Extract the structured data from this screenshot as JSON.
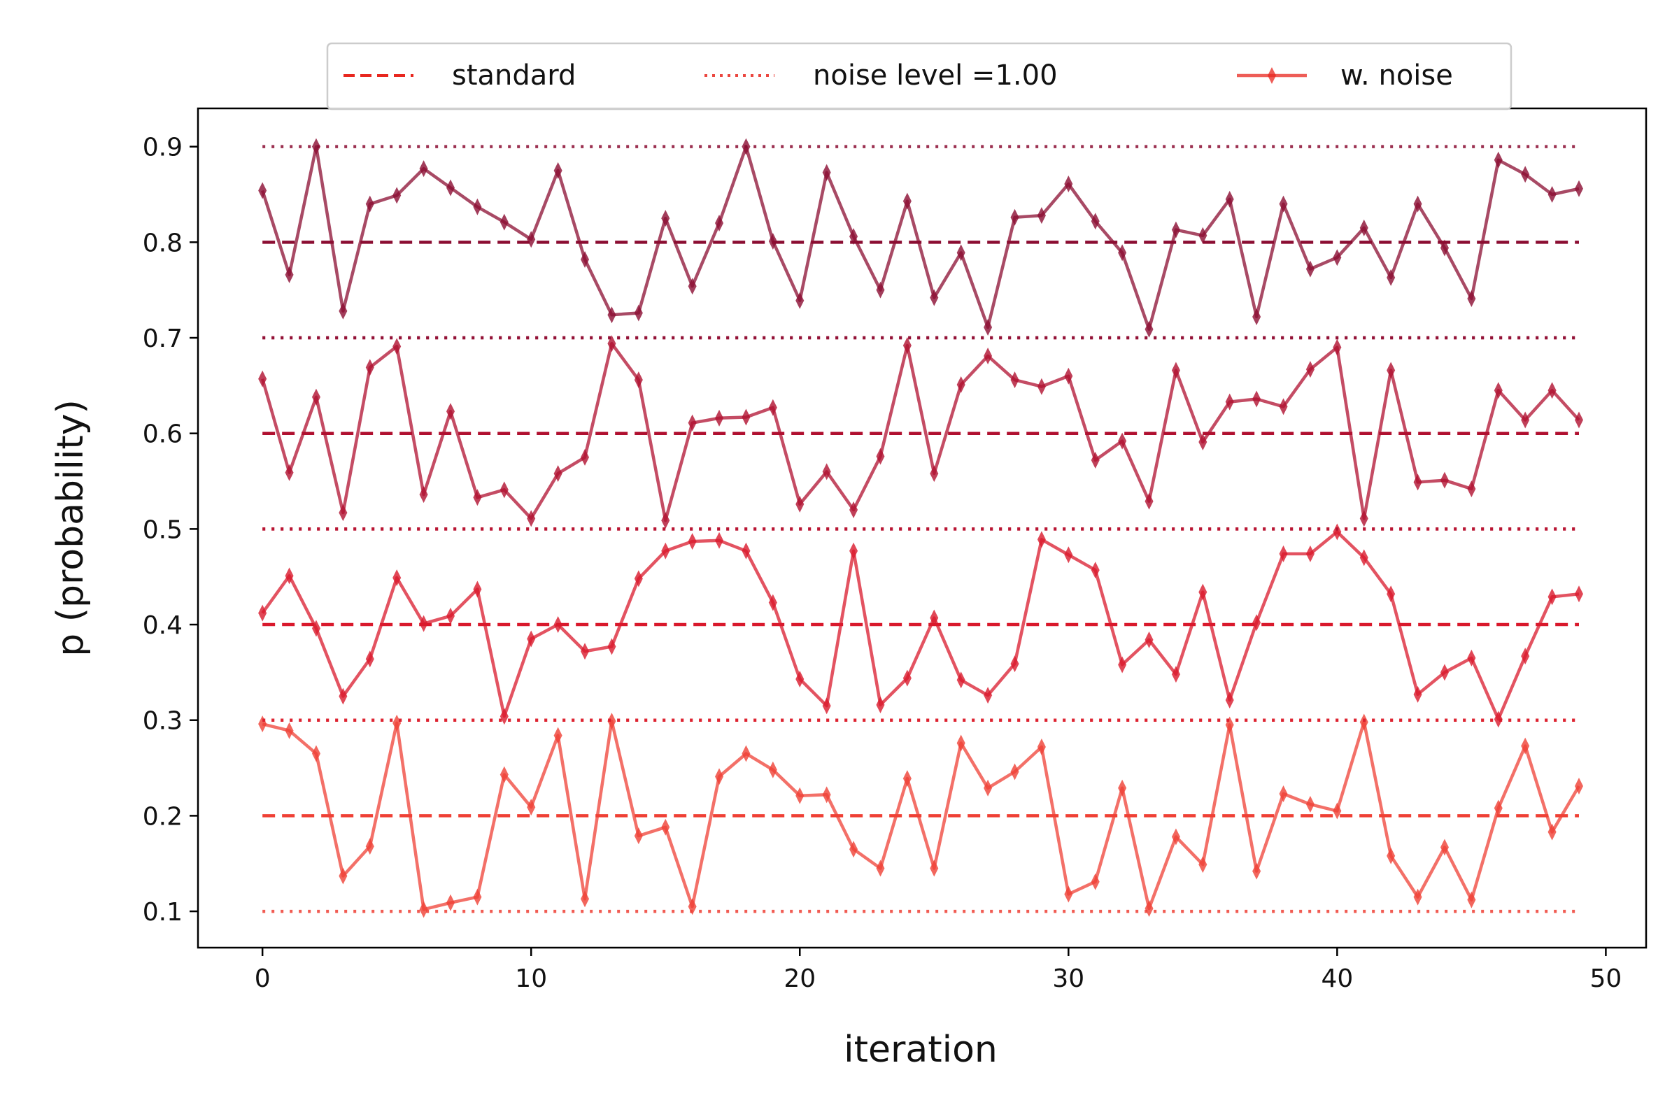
{
  "chart_data": {
    "type": "line",
    "xlabel": "iteration",
    "ylabel": "p (probability)",
    "xlim": [
      -2.4,
      51.5
    ],
    "ylim": [
      0.062,
      0.94
    ],
    "xticks": [
      0,
      10,
      20,
      30,
      40,
      50
    ],
    "xtick_labels": [
      "0",
      "10",
      "20",
      "30",
      "40",
      "50"
    ],
    "yticks": [
      0.1,
      0.2,
      0.3,
      0.4,
      0.5,
      0.6,
      0.7,
      0.8,
      0.9
    ],
    "ytick_labels": [
      "0.1",
      "0.2",
      "0.3",
      "0.4",
      "0.5",
      "0.6",
      "0.7",
      "0.8",
      "0.9"
    ],
    "grid": false,
    "legend": {
      "placement": "top-center",
      "entries": [
        {
          "label": "standard",
          "style": "dashed",
          "color": "#e8271f"
        },
        {
          "label": "noise level =1.00",
          "style": "dotted",
          "color": "#e8271f"
        },
        {
          "label": "w. noise",
          "style": "marker-line",
          "color": "#e8271f"
        }
      ]
    },
    "x_range": [
      0,
      49
    ],
    "series": [
      {
        "color": "#ef4035",
        "standard": 0.2,
        "noise_bounds": [
          0.1,
          0.3
        ],
        "values": [
          0.296,
          0.289,
          0.265,
          0.137,
          0.168,
          0.297,
          0.102,
          0.109,
          0.115,
          0.243,
          0.209,
          0.284,
          0.113,
          0.299,
          0.179,
          0.188,
          0.105,
          0.241,
          0.265,
          0.248,
          0.221,
          0.222,
          0.165,
          0.145,
          0.239,
          0.145,
          0.276,
          0.229,
          0.246,
          0.272,
          0.118,
          0.131,
          0.229,
          0.103,
          0.178,
          0.149,
          0.295,
          0.142,
          0.223,
          0.212,
          0.205,
          0.298,
          0.158,
          0.115,
          0.167,
          0.112,
          0.208,
          0.273,
          0.183,
          0.231
        ]
      },
      {
        "color": "#d9192c",
        "standard": 0.4,
        "noise_bounds": [
          0.3,
          0.5
        ],
        "values": [
          0.412,
          0.451,
          0.396,
          0.325,
          0.364,
          0.449,
          0.401,
          0.409,
          0.437,
          0.304,
          0.385,
          0.4,
          0.372,
          0.377,
          0.448,
          0.477,
          0.487,
          0.488,
          0.477,
          0.423,
          0.343,
          0.315,
          0.477,
          0.316,
          0.344,
          0.407,
          0.342,
          0.326,
          0.359,
          0.489,
          0.473,
          0.457,
          0.358,
          0.384,
          0.348,
          0.434,
          0.321,
          0.402,
          0.474,
          0.474,
          0.497,
          0.47,
          0.432,
          0.327,
          0.35,
          0.365,
          0.301,
          0.367,
          0.429,
          0.432
        ]
      },
      {
        "color": "#b01030",
        "standard": 0.6,
        "noise_bounds": [
          0.5,
          0.7
        ],
        "values": [
          0.657,
          0.559,
          0.638,
          0.517,
          0.669,
          0.691,
          0.536,
          0.623,
          0.533,
          0.541,
          0.511,
          0.558,
          0.575,
          0.694,
          0.656,
          0.509,
          0.611,
          0.616,
          0.617,
          0.627,
          0.526,
          0.56,
          0.52,
          0.576,
          0.692,
          0.558,
          0.651,
          0.681,
          0.656,
          0.649,
          0.66,
          0.572,
          0.592,
          0.529,
          0.666,
          0.591,
          0.633,
          0.636,
          0.628,
          0.667,
          0.69,
          0.511,
          0.666,
          0.549,
          0.551,
          0.542,
          0.645,
          0.614,
          0.645,
          0.614
        ]
      },
      {
        "color": "#8b0d32",
        "standard": 0.8,
        "noise_bounds": [
          0.7,
          0.9
        ],
        "values": [
          0.854,
          0.766,
          0.9,
          0.728,
          0.84,
          0.849,
          0.877,
          0.857,
          0.837,
          0.821,
          0.803,
          0.875,
          0.782,
          0.724,
          0.726,
          0.825,
          0.754,
          0.82,
          0.9,
          0.801,
          0.739,
          0.873,
          0.806,
          0.75,
          0.843,
          0.742,
          0.789,
          0.711,
          0.826,
          0.828,
          0.861,
          0.822,
          0.789,
          0.709,
          0.813,
          0.807,
          0.845,
          0.722,
          0.84,
          0.772,
          0.784,
          0.815,
          0.763,
          0.84,
          0.794,
          0.741,
          0.886,
          0.871,
          0.85,
          0.856
        ]
      }
    ]
  }
}
